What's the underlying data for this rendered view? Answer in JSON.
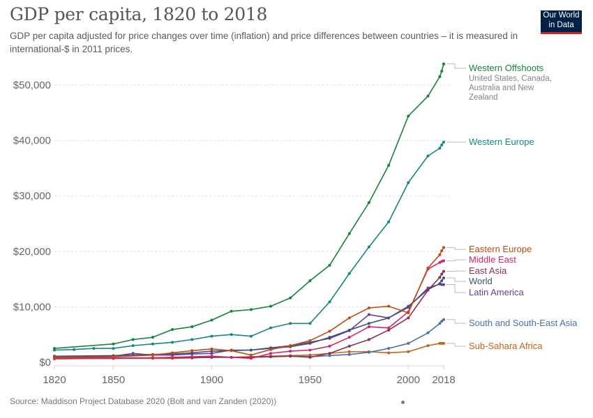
{
  "header": {
    "title": "GDP per capita, 1820 to 2018",
    "subtitle": "GDP per capita adjusted for price changes over time (inflation) and price differences between countries – it is measured in international-$ in 2011 prices.",
    "logo_line1": "Our World",
    "logo_line2": "in Data"
  },
  "footer": {
    "source": "Source: Maddison Project Database 2020 (Bolt and van Zanden (2020))"
  },
  "chart_data": {
    "type": "line",
    "title": "GDP per capita, 1820 to 2018",
    "xlabel": "",
    "ylabel": "",
    "xlim": [
      1820,
      2018
    ],
    "ylim": [
      0,
      55000
    ],
    "grid": "horizontal-dashed",
    "legend": "right (inline labels at line ends)",
    "x_ticks": [
      1820,
      1850,
      1900,
      1950,
      2000,
      2018
    ],
    "x_tick_labels": [
      "1820",
      "1850",
      "1900",
      "1950",
      "2000",
      "2018"
    ],
    "y_ticks": [
      0,
      10000,
      20000,
      30000,
      40000,
      50000
    ],
    "y_tick_labels": [
      "$0",
      "$10,000",
      "$20,000",
      "$30,000",
      "$40,000",
      "$50,000"
    ],
    "x": [
      1820,
      1830,
      1840,
      1850,
      1860,
      1870,
      1880,
      1890,
      1900,
      1910,
      1920,
      1930,
      1940,
      1950,
      1960,
      1970,
      1980,
      1990,
      2000,
      2010,
      2016,
      2017,
      2018
    ],
    "series": [
      {
        "name": "Western Offshoots",
        "description": "United States, Canada, Australia and New Zealand",
        "color": "#18813c",
        "values": [
          2500,
          null,
          null,
          3300,
          4100,
          4500,
          5900,
          6400,
          7600,
          9200,
          9500,
          10100,
          11600,
          14700,
          17500,
          23200,
          28800,
          35500,
          44400,
          48000,
          51500,
          52500,
          53800
        ]
      },
      {
        "name": "Western Europe",
        "description": "",
        "color": "#13897b",
        "values": [
          2200,
          2300,
          2500,
          2500,
          3000,
          3300,
          3600,
          4100,
          4700,
          5000,
          4700,
          6200,
          7000,
          7000,
          10900,
          16000,
          20800,
          25300,
          32400,
          37200,
          38600,
          39200,
          39700
        ]
      },
      {
        "name": "Eastern Europe",
        "description": "",
        "color": "#bf4a11",
        "values": [
          900,
          null,
          null,
          1000,
          null,
          1300,
          1700,
          2100,
          2400,
          2100,
          1300,
          2300,
          3000,
          3900,
          5600,
          8000,
          9800,
          10100,
          8900,
          17000,
          19400,
          20100,
          20700
        ]
      },
      {
        "name": "Middle East",
        "description": "",
        "color": "#d6236d",
        "values": [
          700,
          null,
          null,
          750,
          null,
          800,
          900,
          1000,
          1100,
          900,
          700,
          1600,
          2000,
          2200,
          2900,
          4500,
          6400,
          6200,
          9100,
          16800,
          18000,
          18200,
          18300
        ]
      },
      {
        "name": "East Asia",
        "description": "",
        "color": "#8c2f4a",
        "values": [
          800,
          null,
          null,
          700,
          null,
          800,
          800,
          800,
          900,
          900,
          900,
          1000,
          1100,
          900,
          1600,
          2900,
          4100,
          5800,
          8000,
          13000,
          15300,
          15900,
          16400
        ]
      },
      {
        "name": "World",
        "description": "",
        "color": "#3e5477",
        "values": [
          1100,
          null,
          null,
          1200,
          null,
          1400,
          1500,
          1700,
          2000,
          2100,
          2200,
          2500,
          2800,
          3400,
          4500,
          5800,
          7000,
          8000,
          10100,
          13100,
          14200,
          14700,
          15200
        ]
      },
      {
        "name": "Latin America",
        "description": "",
        "color": "#6a3d9a",
        "values": [
          1000,
          null,
          null,
          1100,
          1600,
          1300,
          1300,
          1500,
          1600,
          2200,
          2200,
          2600,
          3000,
          3600,
          4300,
          5700,
          8600,
          8000,
          9900,
          13400,
          14100,
          14000,
          14000
        ]
      },
      {
        "name": "South and South-East Asia",
        "description": "",
        "color": "#4c6fa5",
        "values": [
          800,
          null,
          null,
          800,
          null,
          800,
          800,
          800,
          900,
          900,
          900,
          1000,
          1100,
          1000,
          1200,
          1400,
          1800,
          2500,
          3400,
          5300,
          7000,
          7400,
          7700
        ]
      },
      {
        "name": "Sub-Sahara Africa",
        "description": "",
        "color": "#c4611a",
        "values": [
          600,
          null,
          null,
          700,
          null,
          700,
          700,
          800,
          900,
          900,
          1000,
          1100,
          1200,
          1300,
          1600,
          1900,
          1900,
          1700,
          1900,
          3000,
          3400,
          3400,
          3400
        ]
      }
    ]
  }
}
